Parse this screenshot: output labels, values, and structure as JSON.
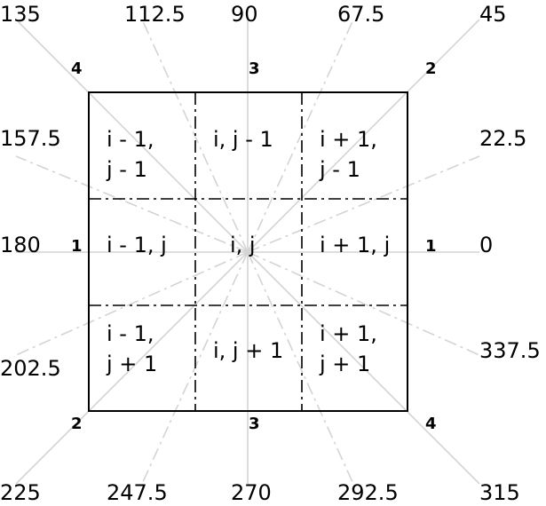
{
  "angle_labels": {
    "a135": "135",
    "a112_5": "112.5",
    "a90": "90",
    "a67_5": "67.5",
    "a45": "45",
    "a157_5": "157.5",
    "a22_5": "22.5",
    "a180": "180",
    "a0": "0",
    "a202_5": "202.5",
    "a337_5": "337.5",
    "a225": "225",
    "a247_5": "247.5",
    "a270": "270",
    "a292_5": "292.5",
    "a315": "315"
  },
  "direction_labels": {
    "top_left": "4",
    "top_center": "3",
    "top_right": "2",
    "left": "1",
    "right": "1",
    "bottom_left": "2",
    "bottom_center": "3",
    "bottom_right": "4"
  },
  "cells": {
    "top_left_line1": "i - 1,",
    "top_left_line2": "j - 1",
    "top_center": "i, j - 1",
    "top_right_line1": "i + 1,",
    "top_right_line2": "j - 1",
    "middle_left": "i - 1, j",
    "center": "i, j",
    "middle_right": "i + 1, j",
    "bottom_left_line1": "i - 1,",
    "bottom_left_line2": "j + 1",
    "bottom_center": "i, j + 1",
    "bottom_right_line1": "i + 1,",
    "bottom_right_line2": "j + 1"
  }
}
